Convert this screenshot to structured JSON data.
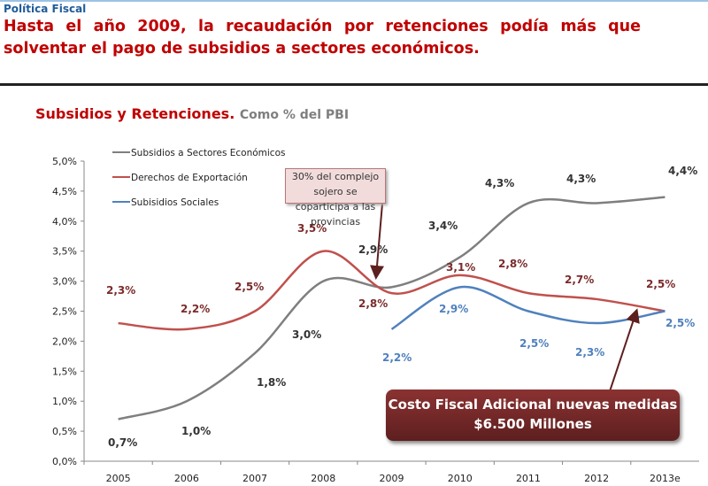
{
  "section": "Política Fiscal",
  "headline": "Hasta el año 2009, la recaudación por retenciones podía más que solventar el pago de subsidios a sectores económicos.",
  "chart_title": "Subsidios y Retenciones.",
  "chart_subtitle": "Como % del PBI",
  "callout": "30% del complejo sojero se coparticipa a las provincias",
  "cost_box": "Costo Fiscal Adicional nuevas medidas $6.500 Millones",
  "chart_data": {
    "type": "line",
    "categories": [
      "2005",
      "2006",
      "2007",
      "2008",
      "2009",
      "2010",
      "2011",
      "2012",
      "2013e"
    ],
    "ylim": [
      0,
      5
    ],
    "yticks": [
      "0,0%",
      "0,5%",
      "1,0%",
      "1,5%",
      "2,0%",
      "2,5%",
      "3,0%",
      "3,5%",
      "4,0%",
      "4,5%",
      "5,0%"
    ],
    "grid": false,
    "legend": "top-left",
    "series": [
      {
        "name": "Subsidios a Sectores Económicos",
        "color": "#7f7f7f",
        "values": [
          0.7,
          1.0,
          1.8,
          3.0,
          2.9,
          3.4,
          4.3,
          4.3,
          4.4
        ],
        "labels": [
          "0,7%",
          "1,0%",
          "1,8%",
          "3,0%",
          "2,9%",
          "3,4%",
          "4,3%",
          "4,3%",
          "4,4%"
        ]
      },
      {
        "name": "Derechos de Exportación",
        "color": "#c0504d",
        "values": [
          2.3,
          2.2,
          2.5,
          3.5,
          2.8,
          3.1,
          2.8,
          2.7,
          2.5
        ],
        "labels": [
          "2,3%",
          "2,2%",
          "2,5%",
          "3,5%",
          "2,8%",
          "3,1%",
          "2,8%",
          "2,7%",
          "2,5%"
        ]
      },
      {
        "name": "Subisidios Sociales",
        "color": "#4f81bd",
        "values": [
          null,
          null,
          null,
          null,
          2.2,
          2.9,
          2.5,
          2.3,
          2.5
        ],
        "labels": [
          "",
          "",
          "",
          "",
          "2,2%",
          "2,9%",
          "2,5%",
          "2,3%",
          "2,5%"
        ]
      }
    ]
  }
}
